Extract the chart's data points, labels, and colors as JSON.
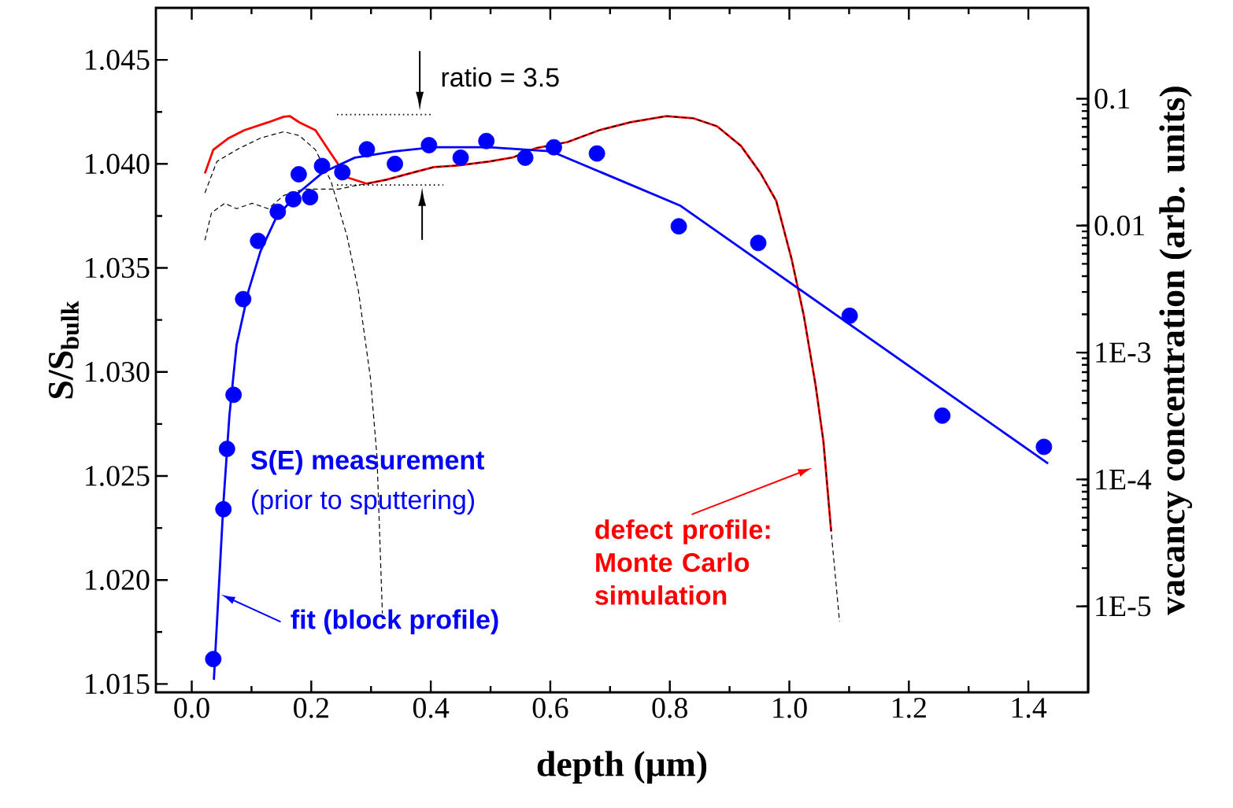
{
  "chart_data": {
    "type": "scatter",
    "xlabel": "depth (μm)",
    "ylabel": "S/S$_{bulk}$",
    "y2label": "vacancy concentration (arb. units)",
    "log": "y2",
    "xlim": [
      -0.06,
      1.5
    ],
    "ylim": [
      1.0146,
      1.0475
    ],
    "y2lim": [
      2.1e-06,
      0.52
    ],
    "xticks": [
      {
        "value": 0,
        "label": "0.0"
      },
      0.2,
      0.4,
      0.6,
      0.8,
      {
        "value": 1,
        "label": "1.0"
      },
      1.2,
      1.4
    ],
    "yticks": [
      1.015,
      {
        "value": 1.02,
        "label": "1.020"
      },
      1.025,
      {
        "value": 1.03,
        "label": "1.030"
      },
      1.035,
      {
        "value": 1.04,
        "label": "1.040"
      },
      1.045
    ],
    "y2ticks": [
      {
        "value": 1e-05,
        "label": "1E-5"
      },
      {
        "value": 0.0001,
        "label": "1E-4"
      },
      {
        "value": 0.001,
        "label": "1E-3"
      },
      0.01,
      0.1
    ],
    "series": [
      {
        "color": "#0000ff",
        "x": [
          0.036,
          0.053,
          0.059,
          0.07,
          0.086,
          0.111,
          0.144,
          0.17,
          0.179,
          0.198,
          0.218,
          0.252,
          0.293,
          0.34,
          0.397,
          0.45,
          0.493,
          0.558,
          0.606,
          0.678,
          0.815,
          0.948,
          1.101,
          1.256,
          1.426
        ],
        "values": [
          1.0162,
          1.0234,
          1.0263,
          1.0289,
          1.0335,
          1.0363,
          1.0377,
          1.0383,
          1.0395,
          1.0384,
          1.0399,
          1.0396,
          1.0407,
          1.04,
          1.0409,
          1.0403,
          1.0411,
          1.0403,
          1.0408,
          1.0405,
          1.037,
          1.0362,
          1.0327,
          1.0279,
          1.0264
        ]
      },
      {
        "type": "line",
        "color": "#0000ff",
        "x": [
          0.037,
          0.053,
          0.063,
          0.075,
          0.095,
          0.115,
          0.141,
          0.174,
          0.22,
          0.273,
          0.339,
          0.405,
          0.497,
          0.602,
          0.817,
          1.433
        ],
        "values": [
          1.0152,
          1.0237,
          1.0279,
          1.0313,
          1.0339,
          1.0358,
          1.0374,
          1.0385,
          1.0396,
          1.0403,
          1.0406,
          1.0408,
          1.0408,
          1.0406,
          1.038,
          1.0256
        ]
      },
      {
        "type": "line",
        "color": "#ff0000",
        "axis": "y2",
        "x": [
          0.022,
          0.036,
          0.062,
          0.088,
          0.128,
          0.154,
          0.164,
          0.18,
          0.207,
          0.233,
          0.26,
          0.293,
          0.326,
          0.365,
          0.405,
          0.445,
          0.497,
          0.537,
          0.576,
          0.629,
          0.682,
          0.734,
          0.794,
          0.84,
          0.879,
          0.919,
          0.952,
          0.978,
          1.004,
          1.024,
          1.044,
          1.057,
          1.07
        ],
        "values": [
          0.0258,
          0.0396,
          0.049,
          0.0565,
          0.0652,
          0.0721,
          0.073,
          0.0652,
          0.0565,
          0.0369,
          0.024,
          0.0214,
          0.023,
          0.0258,
          0.0289,
          0.0298,
          0.032,
          0.0344,
          0.0408,
          0.0456,
          0.0565,
          0.0652,
          0.073,
          0.07,
          0.0607,
          0.0425,
          0.0258,
          0.0157,
          0.0054,
          0.00198,
          0.00055,
          0.0002,
          3.9e-05
        ]
      },
      {
        "type": "line",
        "color": "#000000",
        "axis": "y2",
        "line_style": "dashed",
        "x": [
          0.022,
          0.042,
          0.075,
          0.115,
          0.154,
          0.18,
          0.207,
          0.233,
          0.26,
          0.279,
          0.299,
          0.31,
          0.319
        ],
        "values": [
          0.0181,
          0.032,
          0.0396,
          0.049,
          0.055,
          0.0512,
          0.0396,
          0.0224,
          0.0082,
          0.00304,
          0.00063,
          0.00015,
          8.8e-06
        ]
      },
      {
        "type": "line",
        "color": "#000000",
        "axis": "y2",
        "line_style": "dashed",
        "x": [
          0.022,
          0.033,
          0.055,
          0.075,
          0.101,
          0.128,
          0.154,
          0.187,
          0.22,
          0.246,
          0.272,
          0.293,
          0.326,
          0.365,
          0.405,
          0.445,
          0.497,
          0.537,
          0.576,
          0.629,
          0.682,
          0.734,
          0.794,
          0.84,
          0.879,
          0.919,
          0.952,
          0.978,
          1.004,
          1.024,
          1.044,
          1.057,
          1.07,
          1.084
        ],
        "values": [
          0.00767,
          0.0126,
          0.015,
          0.0136,
          0.015,
          0.0136,
          0.0173,
          0.0194,
          0.0194,
          0.0194,
          0.0206,
          0.0214,
          0.023,
          0.0258,
          0.0289,
          0.0298,
          0.032,
          0.0344,
          0.0408,
          0.0456,
          0.0565,
          0.0652,
          0.073,
          0.07,
          0.0607,
          0.0425,
          0.0258,
          0.0157,
          0.0054,
          0.00198,
          0.00055,
          0.0002,
          3.9e-05,
          7.6e-06
        ]
      },
      {
        "type": "line",
        "color": "#000000",
        "axis": "y2",
        "line_style": "dotted",
        "x": [
          0.243,
          0.403
        ],
        "values": [
          0.075,
          0.075
        ]
      },
      {
        "type": "line",
        "color": "#000000",
        "axis": "y2",
        "line_style": "dotted",
        "x": [
          0.243,
          0.421
        ],
        "values": [
          0.0209,
          0.0209
        ]
      }
    ],
    "annotations": [
      "ratio = 3.5",
      "S(E) measurement",
      "(prior to sputtering)",
      {
        "text": "fit (block profile)",
        "x": 0.049,
        "y": 1.0193
      },
      "defect profile: Monte Carlo simulation"
    ]
  }
}
